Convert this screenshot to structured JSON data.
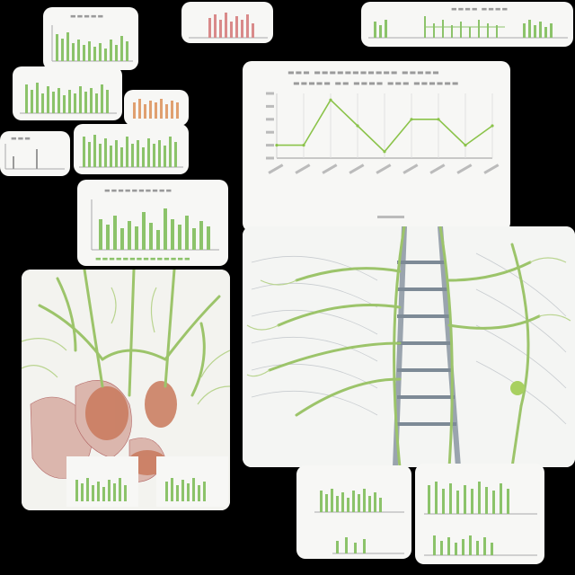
{
  "colors": {
    "background": "#000000",
    "card": "#f7f7f5",
    "bar_green": "#8cc36a",
    "bar_dark_green": "#5f9a3c",
    "bar_red": "#d98a8a",
    "bar_orange": "#e0a070",
    "line_green": "#8bc34a",
    "vein_green": "#9cc46a",
    "tissue_red": "#b5584a",
    "spine_gray": "#9aa4ae"
  },
  "chart_data": [
    {
      "type": "line",
      "title": "",
      "xlabel": "",
      "ylabel": "",
      "x": [
        1,
        2,
        3,
        4,
        5,
        6,
        7,
        8,
        9
      ],
      "series": [
        {
          "values": [
            2,
            2,
            9,
            5,
            1,
            6,
            6,
            2,
            5
          ]
        }
      ],
      "ylim": [
        0,
        10
      ],
      "grid": true
    }
  ],
  "icons": [
    "vascular-network-illustration",
    "spine-illustration"
  ]
}
